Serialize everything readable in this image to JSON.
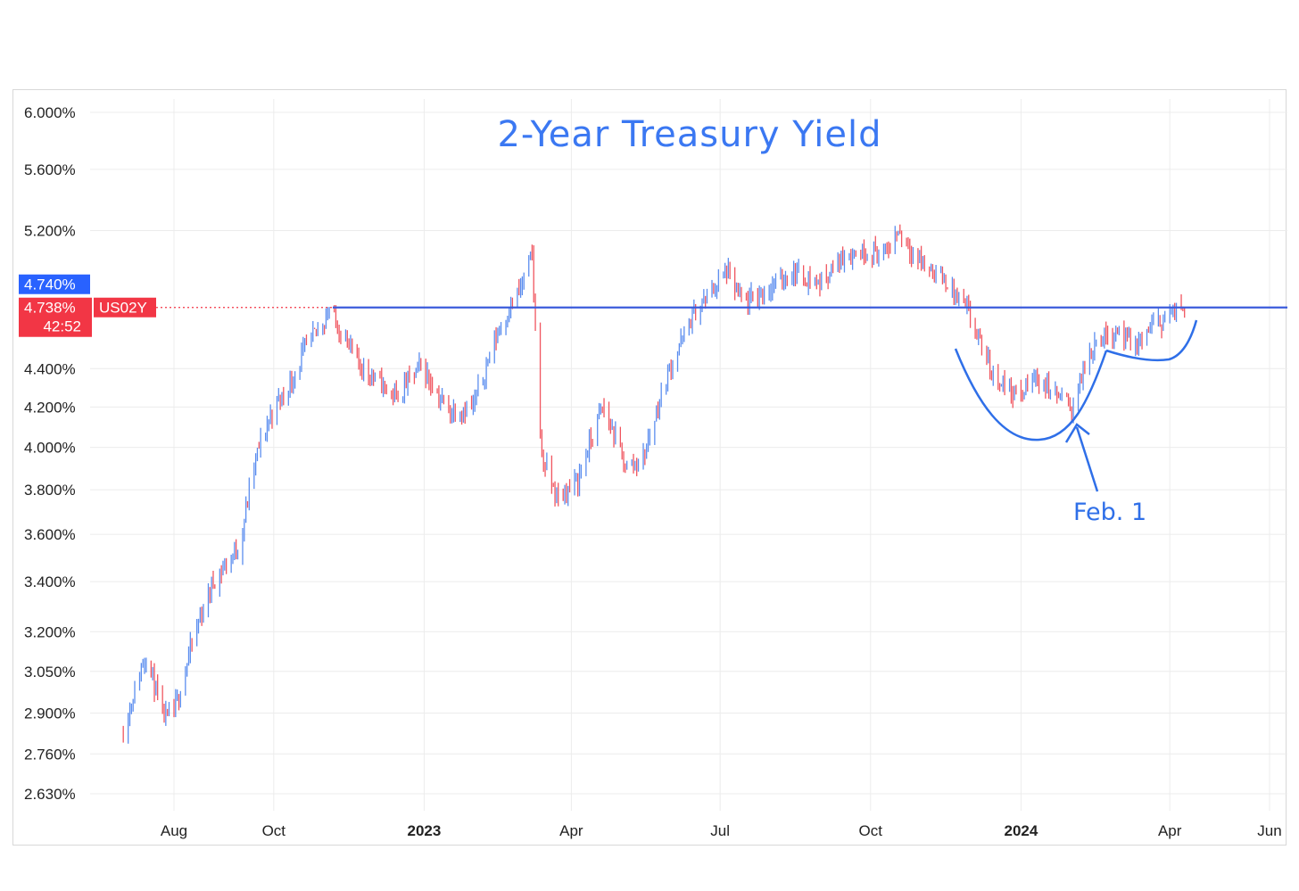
{
  "chart_data": {
    "type": "candlestick",
    "title": "2-Year Treasury Yield",
    "xlabel": "",
    "ylabel": "",
    "y_scale": "log",
    "y_ticks": [
      "6.000%",
      "5.600%",
      "5.200%",
      "4.400%",
      "4.200%",
      "4.000%",
      "3.800%",
      "3.600%",
      "3.400%",
      "3.200%",
      "3.050%",
      "2.900%",
      "2.760%",
      "2.630%"
    ],
    "x_ticks": [
      {
        "label": "Aug",
        "bold": false
      },
      {
        "label": "Oct",
        "bold": false
      },
      {
        "label": "2023",
        "bold": true
      },
      {
        "label": "Apr",
        "bold": false
      },
      {
        "label": "Jul",
        "bold": false
      },
      {
        "label": "Oct",
        "bold": false
      },
      {
        "label": "2024",
        "bold": true
      },
      {
        "label": "Apr",
        "bold": false
      },
      {
        "label": "Jun",
        "bold": false
      }
    ],
    "x_range": [
      "2022-07-01",
      "2024-06-15"
    ],
    "grid": true,
    "legend": "none",
    "series": [
      {
        "name": "US02Y",
        "points": [
          {
            "x": "2022-07-01",
            "y": 2.84
          },
          {
            "x": "2022-07-15",
            "y": 3.12
          },
          {
            "x": "2022-07-25",
            "y": 2.88
          },
          {
            "x": "2022-08-01",
            "y": 2.9
          },
          {
            "x": "2022-08-15",
            "y": 3.22
          },
          {
            "x": "2022-08-25",
            "y": 3.4
          },
          {
            "x": "2022-09-10",
            "y": 3.55
          },
          {
            "x": "2022-09-20",
            "y": 3.95
          },
          {
            "x": "2022-10-01",
            "y": 4.2
          },
          {
            "x": "2022-10-10",
            "y": 4.3
          },
          {
            "x": "2022-10-20",
            "y": 4.5
          },
          {
            "x": "2022-11-04",
            "y": 4.72
          },
          {
            "x": "2022-11-20",
            "y": 4.45
          },
          {
            "x": "2022-12-01",
            "y": 4.35
          },
          {
            "x": "2022-12-15",
            "y": 4.25
          },
          {
            "x": "2022-12-30",
            "y": 4.42
          },
          {
            "x": "2023-01-15",
            "y": 4.18
          },
          {
            "x": "2023-01-31",
            "y": 4.2
          },
          {
            "x": "2023-02-15",
            "y": 4.6
          },
          {
            "x": "2023-03-01",
            "y": 4.85
          },
          {
            "x": "2023-03-08",
            "y": 5.05
          },
          {
            "x": "2023-03-10",
            "y": 4.6
          },
          {
            "x": "2023-03-14",
            "y": 3.95
          },
          {
            "x": "2023-03-24",
            "y": 3.75
          },
          {
            "x": "2023-04-05",
            "y": 3.85
          },
          {
            "x": "2023-04-20",
            "y": 4.2
          },
          {
            "x": "2023-05-05",
            "y": 3.9
          },
          {
            "x": "2023-05-15",
            "y": 3.95
          },
          {
            "x": "2023-05-31",
            "y": 4.4
          },
          {
            "x": "2023-06-15",
            "y": 4.7
          },
          {
            "x": "2023-07-05",
            "y": 4.95
          },
          {
            "x": "2023-07-15",
            "y": 4.75
          },
          {
            "x": "2023-07-31",
            "y": 4.85
          },
          {
            "x": "2023-08-15",
            "y": 4.95
          },
          {
            "x": "2023-08-31",
            "y": 4.88
          },
          {
            "x": "2023-09-15",
            "y": 5.05
          },
          {
            "x": "2023-09-30",
            "y": 5.08
          },
          {
            "x": "2023-10-10",
            "y": 5.05
          },
          {
            "x": "2023-10-18",
            "y": 5.2
          },
          {
            "x": "2023-11-01",
            "y": 5.0
          },
          {
            "x": "2023-11-15",
            "y": 4.9
          },
          {
            "x": "2023-11-30",
            "y": 4.7
          },
          {
            "x": "2023-12-05",
            "y": 4.58
          },
          {
            "x": "2023-12-14",
            "y": 4.38
          },
          {
            "x": "2023-12-31",
            "y": 4.25
          },
          {
            "x": "2024-01-10",
            "y": 4.36
          },
          {
            "x": "2024-01-18",
            "y": 4.3
          },
          {
            "x": "2024-02-01",
            "y": 4.2
          },
          {
            "x": "2024-02-15",
            "y": 4.55
          },
          {
            "x": "2024-03-01",
            "y": 4.62
          },
          {
            "x": "2024-03-10",
            "y": 4.5
          },
          {
            "x": "2024-03-20",
            "y": 4.62
          },
          {
            "x": "2024-04-01",
            "y": 4.7
          },
          {
            "x": "2024-04-10",
            "y": 4.74
          }
        ]
      }
    ],
    "horizontal_line": {
      "value": 4.738,
      "color": "#3b5bdb"
    },
    "last_price": "4.740%",
    "bid_price": "4.738%",
    "countdown": "42:52",
    "symbol_badge": "US02Y",
    "annotation": {
      "text": "Feb. 1",
      "date": "2024-02-01"
    },
    "colors": {
      "up": "#5b8def",
      "down": "#f0555f",
      "line": "#3b5bdb",
      "annotation": "#2f6fe8",
      "badge_blue": "#2962ff",
      "badge_red": "#f23645"
    }
  }
}
